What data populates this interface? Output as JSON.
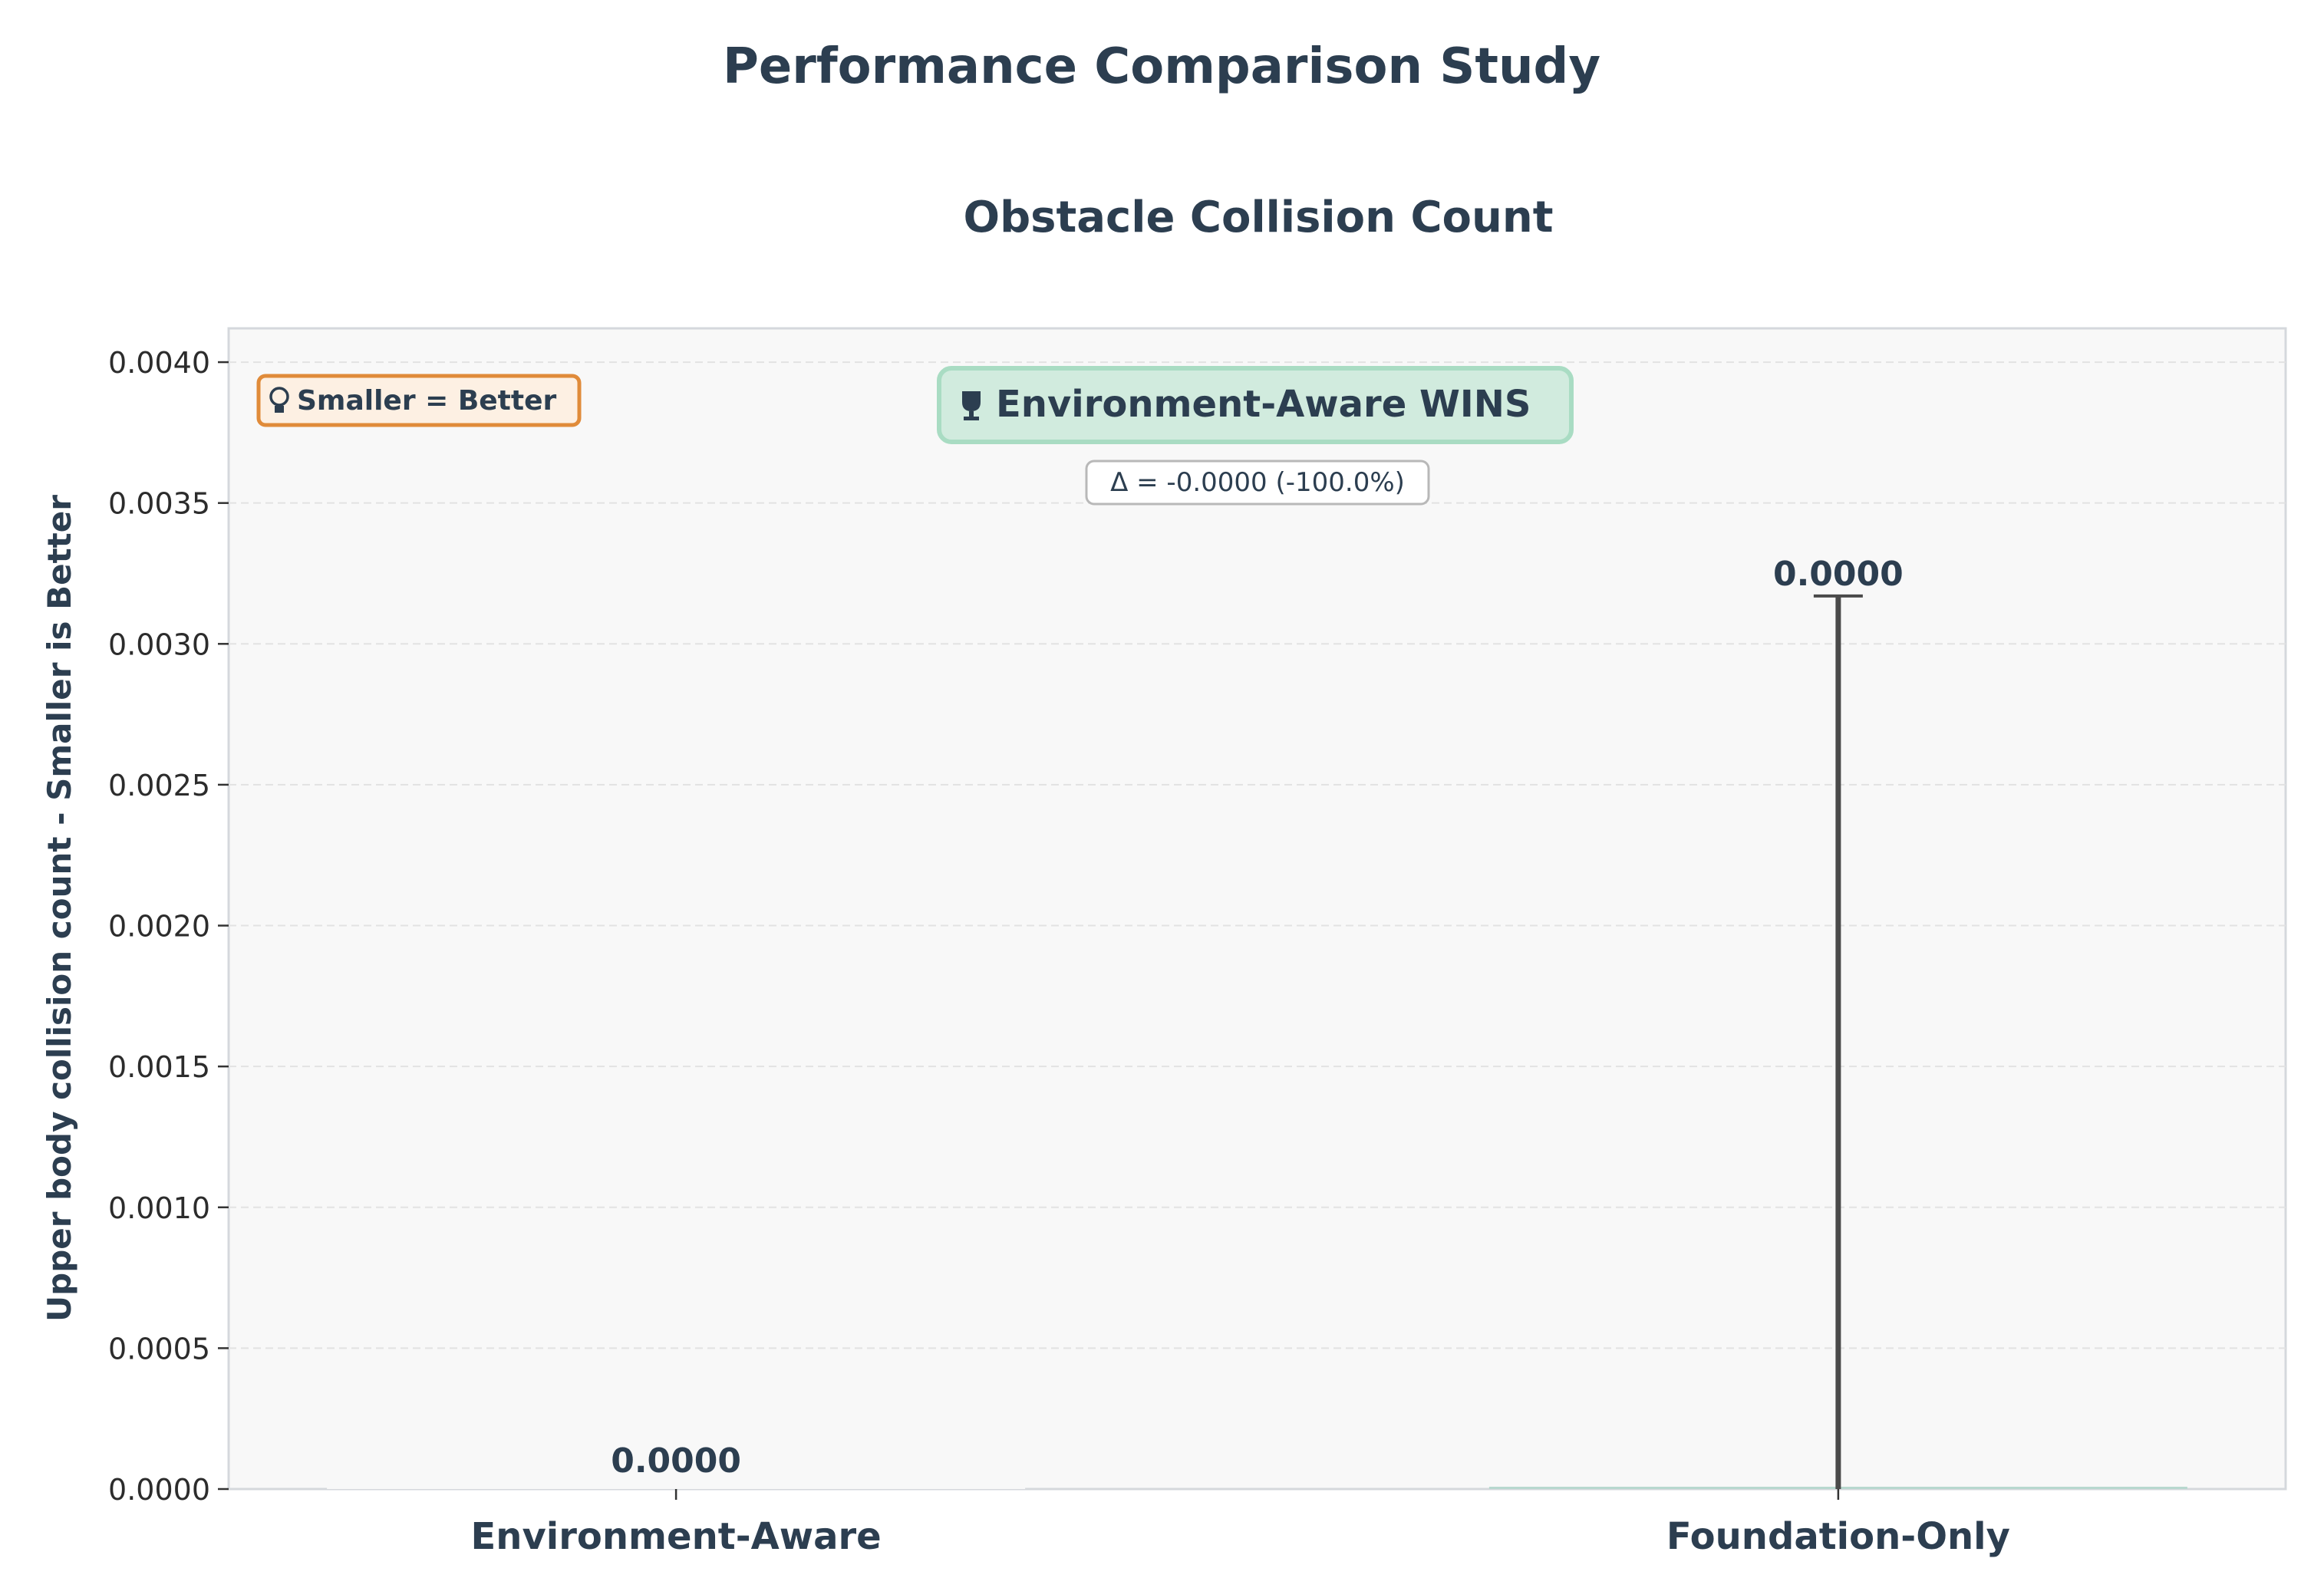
{
  "chart_data": {
    "type": "bar",
    "suptitle": "Performance Comparison Study",
    "title": "Obstacle Collision Count",
    "ylabel": "Upper body collision count - Smaller is Better",
    "xlabel": "",
    "categories": [
      "Environment-Aware",
      "Foundation-Only"
    ],
    "values": [
      0.0,
      0.0
    ],
    "error_bars": [
      0.0,
      0.00317
    ],
    "value_labels": [
      "0.0000",
      "0.0000"
    ],
    "ylim": [
      0,
      0.00412
    ],
    "yticks": [
      0,
      0.0005,
      0.001,
      0.0015,
      0.002,
      0.0025,
      0.003,
      0.0035,
      0.004
    ],
    "ytick_labels": [
      "0.0000",
      "0.0005",
      "0.0010",
      "0.0015",
      "0.0020",
      "0.0025",
      "0.0030",
      "0.0035",
      "0.0040"
    ],
    "grid": "y-dashed",
    "annotations": {
      "hint_icon": "lightbulb-icon",
      "hint": "Smaller = Better",
      "winner_icon": "trophy-icon",
      "winner": "Environment-Aware WINS",
      "delta": "Δ = -0.0000 (-100.0%)"
    },
    "colors": {
      "text": "#2c3e50",
      "axes_bg": "#f8f8f8",
      "axes_border": "#d5d8dc",
      "grid": "#e2e2e2",
      "errorbar": "#4a4a4a",
      "bar_foundation": "#b8d8cf",
      "winner_bg": "#d1ebde",
      "winner_border": "#a9dcc3",
      "hint_bg": "#fdf0e3",
      "hint_border": "#e08b3a",
      "delta_border": "#b8b8b8"
    }
  }
}
